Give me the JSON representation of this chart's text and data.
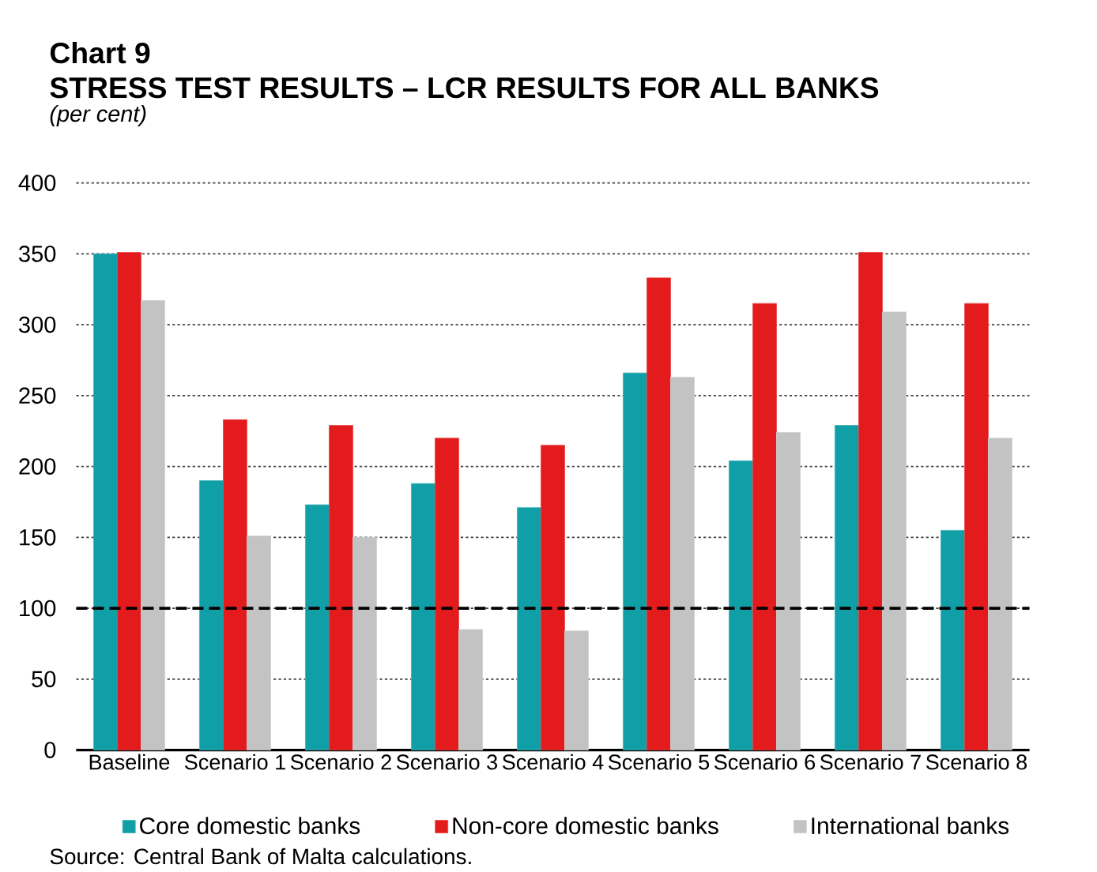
{
  "chart_data": {
    "type": "bar",
    "title": "Chart 9",
    "subtitle": "STRESS TEST RESULTS – LCR RESULTS FOR ALL BANKS",
    "ylabel": "(per cent)",
    "categories": [
      "Baseline",
      "Scenario 1",
      "Scenario 2",
      "Scenario 3",
      "Scenario 4",
      "Scenario 5",
      "Scenario 6",
      "Scenario 7",
      "Scenario 8"
    ],
    "series": [
      {
        "name": "Core domestic banks",
        "color": "#109fa6",
        "values": [
          350,
          190,
          173,
          188,
          171,
          266,
          204,
          229,
          155
        ]
      },
      {
        "name": "Non-core domestic banks",
        "color": "#e31b1c",
        "values": [
          351,
          233,
          229,
          220,
          215,
          333,
          315,
          351,
          315
        ]
      },
      {
        "name": "International banks",
        "color": "#c3c3c3",
        "values": [
          317,
          151,
          150,
          85,
          84,
          263,
          224,
          309,
          220
        ]
      }
    ],
    "ylim": [
      0,
      400
    ],
    "yticks": [
      0,
      50,
      100,
      150,
      200,
      250,
      300,
      350,
      400
    ],
    "grid": "y",
    "legend": "bottom",
    "ref_lines": [
      {
        "axis": "y",
        "value": 100,
        "color": "#000000",
        "line_style": "dashed"
      }
    ],
    "annotations": [
      "Source: Central Bank of Malta calculations."
    ]
  }
}
